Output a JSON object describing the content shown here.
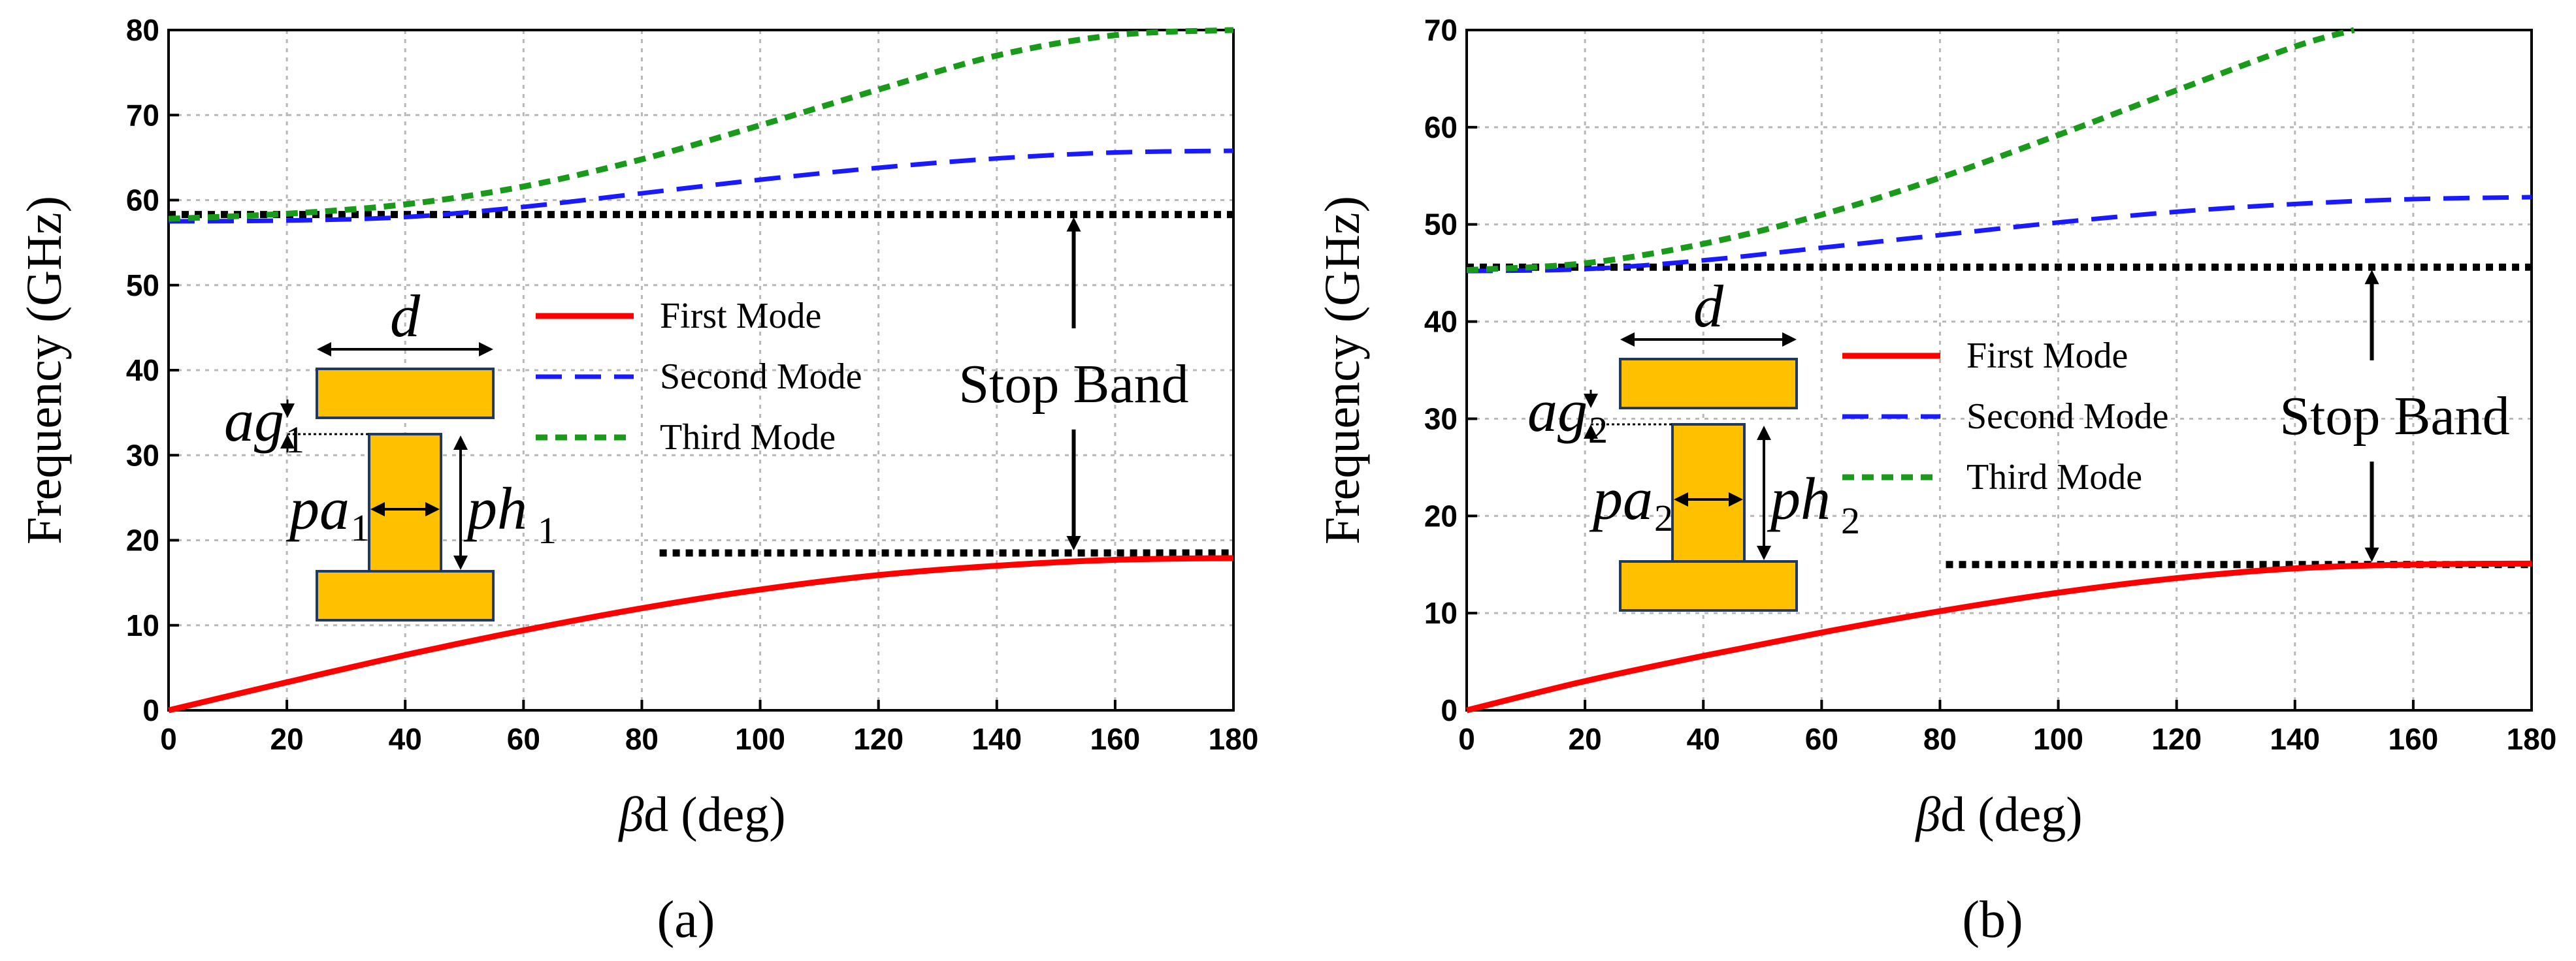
{
  "colors": {
    "first_mode": "#ff0000",
    "second_mode": "#1a1aff",
    "third_mode": "#1a9a1a",
    "bound": "#000000",
    "grid": "#b8b8b8",
    "inset_fill": "#ffc000",
    "inset_stroke": "#1f3864"
  },
  "chart_data": [
    {
      "type": "line",
      "caption": "(a)",
      "xlabel_symbol": "β",
      "xlabel_rest": "d (deg)",
      "ylabel": "Frequency (GHz)",
      "xlim": [
        0,
        180
      ],
      "ylim": [
        0,
        80
      ],
      "x_ticks": [
        0,
        20,
        40,
        60,
        80,
        100,
        120,
        140,
        160,
        180
      ],
      "y_ticks": [
        0,
        10,
        20,
        30,
        40,
        50,
        60,
        70,
        80
      ],
      "grid": true,
      "legend_position": "center",
      "legend": [
        "First Mode",
        "Second Mode",
        "Third Mode"
      ],
      "annotation": "Stop Band",
      "series": [
        {
          "name": "First Mode",
          "style": "solid",
          "x": [
            0,
            20,
            40,
            60,
            80,
            100,
            120,
            140,
            160,
            180
          ],
          "y": [
            0,
            3.3,
            6.5,
            9.4,
            12.0,
            14.2,
            15.9,
            17.0,
            17.7,
            17.9
          ]
        },
        {
          "name": "Second Mode",
          "style": "dashed",
          "x": [
            0,
            20,
            40,
            60,
            80,
            100,
            120,
            140,
            160,
            180
          ],
          "y": [
            57.5,
            57.6,
            58.0,
            59.2,
            60.8,
            62.4,
            63.8,
            64.9,
            65.6,
            65.8
          ]
        },
        {
          "name": "Third Mode",
          "style": "dotted",
          "x": [
            0,
            20,
            40,
            60,
            80,
            100,
            120,
            140,
            160,
            180
          ],
          "y": [
            57.8,
            58.4,
            59.5,
            61.6,
            64.8,
            68.8,
            73.0,
            77.0,
            79.4,
            80.0
          ]
        }
      ],
      "bounds": [
        {
          "y": 58.3,
          "x": [
            0,
            180
          ]
        },
        {
          "y": 18.5,
          "x": [
            83,
            180
          ]
        }
      ],
      "stop_band_arrow": {
        "x": 153,
        "from": 18.5,
        "to": 58.3
      },
      "inset": {
        "d": "d",
        "ag": "ag",
        "ag_sub": "1",
        "pa": "pa",
        "pa_sub": "1",
        "ph": "ph",
        "ph_sub": "1"
      }
    },
    {
      "type": "line",
      "caption": "(b)",
      "xlabel_symbol": "β",
      "xlabel_rest": "d (deg)",
      "ylabel": "Frequency (GHz)",
      "xlim": [
        0,
        180
      ],
      "ylim": [
        0,
        70
      ],
      "x_ticks": [
        0,
        20,
        40,
        60,
        80,
        100,
        120,
        140,
        160,
        180
      ],
      "y_ticks": [
        0,
        10,
        20,
        30,
        40,
        50,
        60,
        70
      ],
      "grid": true,
      "legend_position": "center",
      "legend": [
        "First Mode",
        "Second Mode",
        "Third Mode"
      ],
      "annotation": "Stop Band",
      "series": [
        {
          "name": "First Mode",
          "style": "solid",
          "x": [
            0,
            20,
            40,
            60,
            80,
            100,
            120,
            140,
            160,
            180
          ],
          "y": [
            0,
            3.0,
            5.6,
            8.0,
            10.2,
            12.1,
            13.6,
            14.6,
            15.0,
            15.1
          ]
        },
        {
          "name": "Second Mode",
          "style": "dashed",
          "x": [
            0,
            20,
            40,
            60,
            80,
            100,
            120,
            140,
            160,
            180
          ],
          "y": [
            45.2,
            45.4,
            46.3,
            47.6,
            48.9,
            50.2,
            51.3,
            52.1,
            52.6,
            52.8
          ]
        },
        {
          "name": "Third Mode",
          "style": "dotted",
          "x": [
            0,
            20,
            40,
            60,
            80,
            100,
            120,
            140,
            150
          ],
          "y": [
            45.3,
            46.0,
            48.0,
            51.0,
            54.8,
            59.2,
            63.8,
            68.3,
            70.0
          ]
        }
      ],
      "bounds": [
        {
          "y": 45.6,
          "x": [
            0,
            180
          ]
        },
        {
          "y": 15.0,
          "x": [
            81,
            180
          ]
        }
      ],
      "stop_band_arrow": {
        "x": 153,
        "from": 15.0,
        "to": 45.6
      },
      "inset": {
        "d": "d",
        "ag": "ag",
        "ag_sub": "2",
        "pa": "pa",
        "pa_sub": "2",
        "ph": "ph",
        "ph_sub": "2"
      }
    }
  ]
}
